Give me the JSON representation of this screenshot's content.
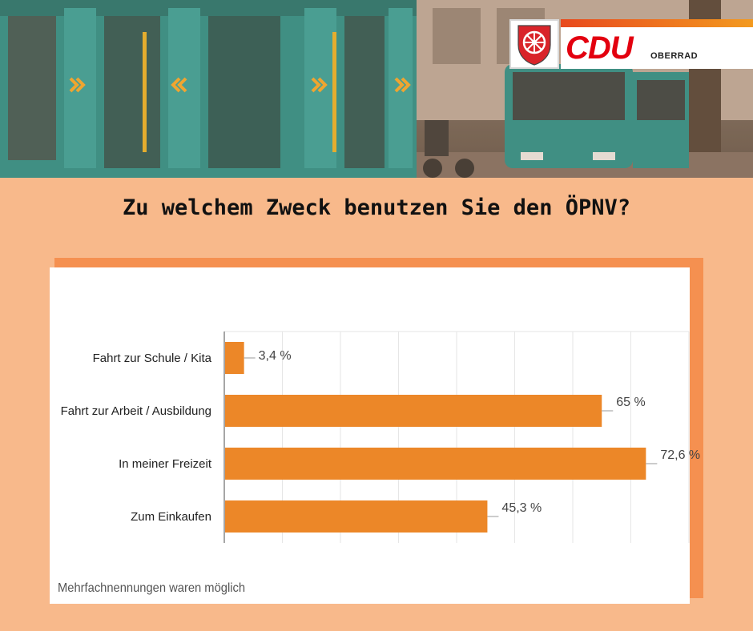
{
  "header": {
    "title": "Zu welchem Zweck benutzen Sie den ÖPNV?",
    "logo_brand": "CDU",
    "logo_sub": "OBERRAD"
  },
  "colors": {
    "background": "#f8b98b",
    "bar": "#ec8728",
    "accent": "#f59050",
    "brand_red": "#e3000f"
  },
  "banner": {
    "icon": "bus-tram-photo"
  },
  "chart_data": {
    "type": "bar",
    "orientation": "horizontal",
    "categories": [
      "Fahrt zur Schule / Kita",
      "Fahrt zur Arbeit / Ausbildung",
      "In meiner Freizeit",
      "Zum Einkaufen"
    ],
    "values": [
      3.4,
      65,
      72.6,
      45.3
    ],
    "value_labels": [
      "3,4 %",
      "65 %",
      "72,6 %",
      "45,3 %"
    ],
    "xlim": [
      0,
      80
    ],
    "grid": true,
    "title": "",
    "xlabel": "",
    "ylabel": ""
  },
  "footnote": "Mehrfachnennungen waren möglich"
}
